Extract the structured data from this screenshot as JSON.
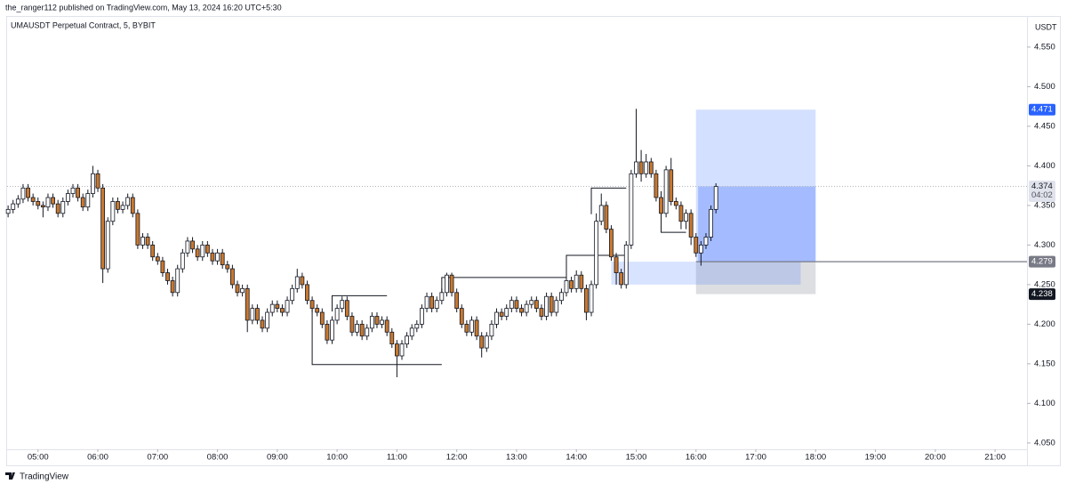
{
  "header": {
    "publisher": "the_ranger112 published on TradingView.com, May 13, 2024 16:20 UTC+5:30"
  },
  "footer": {
    "brand": "TradingView"
  },
  "chart_data": {
    "type": "candlestick",
    "title": "UMAUSDT Perpetual Contract, 5, BYBIT",
    "y_axis_unit": "USDT",
    "x": [
      "04:30",
      "04:35",
      "04:40",
      "04:45",
      "04:50",
      "04:55",
      "05:00",
      "05:05",
      "05:10",
      "05:15",
      "05:20",
      "05:25",
      "05:30",
      "05:35",
      "05:40",
      "05:45",
      "05:50",
      "05:55",
      "06:00",
      "06:05",
      "06:10",
      "06:15",
      "06:20",
      "06:25",
      "06:30",
      "06:35",
      "06:40",
      "06:45",
      "06:50",
      "06:55",
      "07:00",
      "07:05",
      "07:10",
      "07:15",
      "07:20",
      "07:25",
      "07:30",
      "07:35",
      "07:40",
      "07:45",
      "07:50",
      "07:55",
      "08:00",
      "08:05",
      "08:10",
      "08:15",
      "08:20",
      "08:25",
      "08:30",
      "08:35",
      "08:40",
      "08:45",
      "08:50",
      "08:55",
      "09:00",
      "09:05",
      "09:10",
      "09:15",
      "09:20",
      "09:25",
      "09:30",
      "09:35",
      "09:40",
      "09:45",
      "09:50",
      "09:55",
      "10:00",
      "10:05",
      "10:10",
      "10:15",
      "10:20",
      "10:25",
      "10:30",
      "10:35",
      "10:40",
      "10:45",
      "10:50",
      "10:55",
      "11:00",
      "11:05",
      "11:10",
      "11:15",
      "11:20",
      "11:25",
      "11:30",
      "11:35",
      "11:40",
      "11:45",
      "11:50",
      "11:55",
      "12:00",
      "12:05",
      "12:10",
      "12:15",
      "12:20",
      "12:25",
      "12:30",
      "12:35",
      "12:40",
      "12:45",
      "12:50",
      "12:55",
      "13:00",
      "13:05",
      "13:10",
      "13:15",
      "13:20",
      "13:25",
      "13:30",
      "13:35",
      "13:40",
      "13:45",
      "13:50",
      "13:55",
      "14:00",
      "14:05",
      "14:10",
      "14:15",
      "14:20",
      "14:25",
      "14:30",
      "14:35",
      "14:40",
      "14:45",
      "14:50",
      "14:55",
      "15:00",
      "15:05",
      "15:10",
      "15:15",
      "15:20",
      "15:25",
      "15:30",
      "15:35",
      "15:40",
      "15:45",
      "15:50",
      "15:55",
      "16:00",
      "16:05",
      "16:10",
      "16:15",
      "16:20"
    ],
    "open": [
      4.34,
      4.345,
      4.352,
      4.358,
      4.372,
      4.36,
      4.355,
      4.35,
      4.348,
      4.36,
      4.352,
      4.34,
      4.355,
      4.365,
      4.372,
      4.36,
      4.348,
      4.365,
      4.39,
      4.372,
      4.27,
      4.33,
      4.355,
      4.345,
      4.35,
      4.36,
      4.34,
      4.3,
      4.31,
      4.3,
      4.285,
      4.28,
      4.265,
      4.255,
      4.24,
      4.27,
      4.29,
      4.305,
      4.295,
      4.285,
      4.3,
      4.29,
      4.28,
      4.29,
      4.275,
      4.27,
      4.25,
      4.24,
      4.245,
      4.205,
      4.22,
      4.205,
      4.195,
      4.215,
      4.225,
      4.22,
      4.215,
      4.23,
      4.245,
      4.26,
      4.25,
      4.23,
      4.22,
      4.215,
      4.2,
      4.18,
      4.205,
      4.22,
      4.23,
      4.21,
      4.19,
      4.2,
      4.185,
      4.195,
      4.21,
      4.2,
      4.205,
      4.19,
      4.175,
      4.16,
      4.175,
      4.185,
      4.195,
      4.2,
      4.22,
      4.235,
      4.22,
      4.23,
      4.24,
      4.262,
      4.24,
      4.22,
      4.2,
      4.19,
      4.205,
      4.185,
      4.17,
      4.185,
      4.2,
      4.215,
      4.21,
      4.22,
      4.23,
      4.22,
      4.215,
      4.225,
      4.23,
      4.22,
      4.21,
      4.235,
      4.215,
      4.23,
      4.24,
      4.255,
      4.245,
      4.262,
      4.245,
      4.215,
      4.25,
      4.33,
      4.35,
      4.32,
      4.285,
      4.265,
      4.25,
      4.3,
      4.39,
      4.405,
      4.39,
      4.405,
      4.39,
      4.36,
      4.34,
      4.395,
      4.355,
      4.35,
      4.33,
      4.34,
      4.31,
      4.29,
      4.3,
      4.31,
      4.345
    ],
    "high": [
      4.35,
      4.357,
      4.363,
      4.377,
      4.377,
      4.365,
      4.36,
      4.355,
      4.365,
      4.365,
      4.357,
      4.36,
      4.37,
      4.377,
      4.377,
      4.365,
      4.37,
      4.4,
      4.395,
      4.377,
      4.335,
      4.36,
      4.36,
      4.355,
      4.365,
      4.365,
      4.345,
      4.315,
      4.315,
      4.305,
      4.29,
      4.285,
      4.27,
      4.26,
      4.275,
      4.295,
      4.31,
      4.31,
      4.3,
      4.305,
      4.305,
      4.295,
      4.295,
      4.295,
      4.28,
      4.275,
      4.255,
      4.25,
      4.25,
      4.225,
      4.225,
      4.21,
      4.22,
      4.23,
      4.23,
      4.225,
      4.235,
      4.25,
      4.27,
      4.265,
      4.255,
      4.235,
      4.225,
      4.22,
      4.205,
      4.21,
      4.225,
      4.235,
      4.235,
      4.215,
      4.205,
      4.205,
      4.2,
      4.215,
      4.215,
      4.21,
      4.21,
      4.195,
      4.18,
      4.18,
      4.19,
      4.2,
      4.205,
      4.225,
      4.24,
      4.24,
      4.235,
      4.245,
      4.265,
      4.265,
      4.245,
      4.225,
      4.205,
      4.21,
      4.21,
      4.19,
      4.19,
      4.205,
      4.22,
      4.22,
      4.225,
      4.235,
      4.235,
      4.225,
      4.23,
      4.235,
      4.235,
      4.225,
      4.24,
      4.24,
      4.235,
      4.245,
      4.26,
      4.26,
      4.268,
      4.267,
      4.25,
      4.255,
      4.34,
      4.365,
      4.355,
      4.325,
      4.29,
      4.27,
      4.305,
      4.395,
      4.472,
      4.42,
      4.415,
      4.41,
      4.395,
      4.365,
      4.4,
      4.41,
      4.36,
      4.355,
      4.345,
      4.345,
      4.315,
      4.305,
      4.315,
      4.35,
      4.378
    ],
    "low": [
      4.335,
      4.34,
      4.347,
      4.353,
      4.355,
      4.35,
      4.345,
      4.335,
      4.343,
      4.347,
      4.335,
      4.335,
      4.35,
      4.36,
      4.355,
      4.343,
      4.343,
      4.36,
      4.367,
      4.252,
      4.265,
      4.325,
      4.34,
      4.34,
      4.345,
      4.335,
      4.295,
      4.295,
      4.295,
      4.28,
      4.275,
      4.26,
      4.25,
      4.235,
      4.235,
      4.265,
      4.285,
      4.29,
      4.28,
      4.28,
      4.285,
      4.275,
      4.275,
      4.27,
      4.265,
      4.245,
      4.235,
      4.235,
      4.19,
      4.2,
      4.2,
      4.19,
      4.19,
      4.21,
      4.215,
      4.21,
      4.21,
      4.225,
      4.24,
      4.245,
      4.225,
      4.215,
      4.21,
      4.195,
      4.175,
      4.175,
      4.2,
      4.215,
      4.205,
      4.185,
      4.185,
      4.18,
      4.18,
      4.19,
      4.195,
      4.195,
      4.185,
      4.17,
      4.133,
      4.155,
      4.17,
      4.18,
      4.19,
      4.195,
      4.215,
      4.215,
      4.215,
      4.225,
      4.235,
      4.235,
      4.215,
      4.195,
      4.185,
      4.185,
      4.18,
      4.158,
      4.165,
      4.18,
      4.195,
      4.205,
      4.205,
      4.215,
      4.215,
      4.21,
      4.21,
      4.22,
      4.215,
      4.205,
      4.205,
      4.21,
      4.21,
      4.225,
      4.235,
      4.24,
      4.24,
      4.24,
      4.205,
      4.21,
      4.245,
      4.325,
      4.315,
      4.28,
      4.25,
      4.245,
      4.245,
      4.295,
      4.385,
      4.38,
      4.385,
      4.385,
      4.355,
      4.335,
      4.335,
      4.35,
      4.345,
      4.32,
      4.32,
      4.3,
      4.285,
      4.274,
      4.295,
      4.305,
      4.34
    ],
    "close": [
      4.345,
      4.352,
      4.358,
      4.372,
      4.36,
      4.355,
      4.35,
      4.348,
      4.36,
      4.352,
      4.34,
      4.355,
      4.365,
      4.372,
      4.36,
      4.348,
      4.365,
      4.39,
      4.372,
      4.27,
      4.33,
      4.355,
      4.345,
      4.35,
      4.36,
      4.34,
      4.3,
      4.31,
      4.3,
      4.285,
      4.28,
      4.265,
      4.255,
      4.24,
      4.27,
      4.29,
      4.305,
      4.295,
      4.285,
      4.3,
      4.29,
      4.28,
      4.29,
      4.275,
      4.27,
      4.25,
      4.24,
      4.245,
      4.205,
      4.22,
      4.205,
      4.195,
      4.215,
      4.225,
      4.22,
      4.215,
      4.23,
      4.245,
      4.26,
      4.25,
      4.23,
      4.22,
      4.215,
      4.2,
      4.18,
      4.205,
      4.22,
      4.23,
      4.21,
      4.19,
      4.2,
      4.185,
      4.195,
      4.21,
      4.2,
      4.205,
      4.19,
      4.175,
      4.16,
      4.175,
      4.185,
      4.195,
      4.2,
      4.22,
      4.235,
      4.22,
      4.23,
      4.24,
      4.262,
      4.24,
      4.22,
      4.2,
      4.19,
      4.205,
      4.185,
      4.17,
      4.185,
      4.2,
      4.215,
      4.21,
      4.22,
      4.23,
      4.22,
      4.215,
      4.225,
      4.23,
      4.22,
      4.21,
      4.235,
      4.215,
      4.23,
      4.24,
      4.255,
      4.245,
      4.262,
      4.245,
      4.215,
      4.25,
      4.33,
      4.35,
      4.32,
      4.285,
      4.265,
      4.25,
      4.3,
      4.39,
      4.405,
      4.39,
      4.405,
      4.39,
      4.36,
      4.34,
      4.395,
      4.355,
      4.35,
      4.33,
      4.34,
      4.31,
      4.29,
      4.3,
      4.31,
      4.345,
      4.374
    ],
    "up_color": "#ffffff",
    "down_color": "#c8782f",
    "wick_color": "#131722",
    "xlim": [
      "04:29",
      "21:32"
    ],
    "xticks": [
      "05:00",
      "06:00",
      "07:00",
      "08:00",
      "09:00",
      "10:00",
      "11:00",
      "12:00",
      "13:00",
      "14:00",
      "15:00",
      "16:00",
      "17:00",
      "18:00",
      "19:00",
      "20:00",
      "21:00"
    ],
    "ylim": [
      4.042,
      4.587
    ],
    "yticks": [
      {
        "value": 4.05,
        "label": "4.050"
      },
      {
        "value": 4.1,
        "label": "4.100"
      },
      {
        "value": 4.15,
        "label": "4.150"
      },
      {
        "value": 4.2,
        "label": "4.200"
      },
      {
        "value": 4.25,
        "label": "4.250"
      },
      {
        "value": 4.3,
        "label": "4.300"
      },
      {
        "value": 4.35,
        "label": "4.350"
      },
      {
        "value": 4.4,
        "label": "4.400"
      },
      {
        "value": 4.45,
        "label": "4.450"
      },
      {
        "value": 4.5,
        "label": "4.500"
      },
      {
        "value": 4.55,
        "label": "4.550"
      }
    ],
    "grid": false,
    "countdown": "04:02",
    "position": {
      "start": "16:00",
      "end": "18:00",
      "target": 4.471,
      "entry": 4.279,
      "stop": 4.238,
      "target_color": "#2962ff",
      "entry_color": "#787b86",
      "stop_color": "#131722"
    },
    "zone": {
      "start": "14:35",
      "end": "17:45",
      "top": 4.279,
      "bottom": 4.25
    },
    "levels": [
      {
        "x": [
          "09:35",
          "09:35",
          "11:45"
        ],
        "y": [
          4.222,
          4.149,
          4.149
        ]
      },
      {
        "x": [
          "09:55",
          "09:55",
          "10:50"
        ],
        "y": [
          4.216,
          4.236,
          4.236
        ]
      },
      {
        "x": [
          "11:45",
          "11:45",
          "13:50",
          "13:50",
          "14:50"
        ],
        "y": [
          4.239,
          4.259,
          4.259,
          4.287,
          4.287
        ]
      },
      {
        "x": [
          "14:15",
          "14:15",
          "14:50"
        ],
        "y": [
          4.339,
          4.372,
          4.372
        ]
      },
      {
        "x": [
          "15:25",
          "15:25",
          "15:50"
        ],
        "y": [
          4.368,
          4.316,
          4.316
        ]
      }
    ]
  }
}
